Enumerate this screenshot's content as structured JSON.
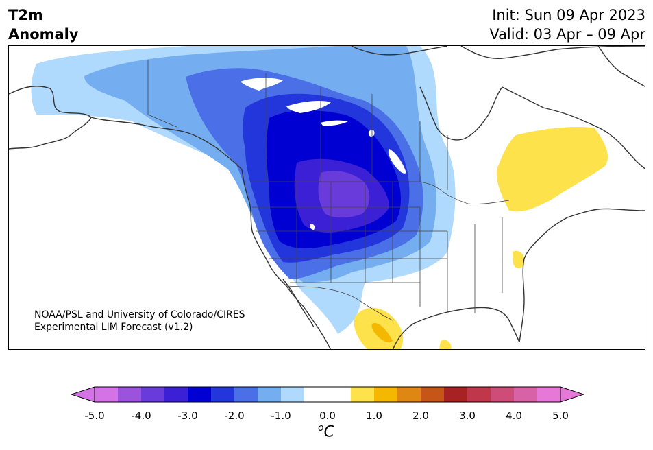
{
  "header": {
    "title_line1": "T2m",
    "title_line2": "Anomaly",
    "init": "Init: Sun 09 Apr 2023",
    "valid": "Valid: 03 Apr – 09 Apr"
  },
  "credit": {
    "line1": "NOAA/PSL and University of Colorado/CIRES",
    "line2": "Experimental LIM Forecast (v1.2)"
  },
  "colorbar": {
    "unit_symbol": "o",
    "unit_letter": "C",
    "ticks": [
      "-5.0",
      "-4.0",
      "-3.0",
      "-2.0",
      "-1.0",
      "0.0",
      "1.0",
      "2.0",
      "3.0",
      "4.0",
      "5.0"
    ],
    "colors": [
      "#d473e6",
      "#9b52dc",
      "#6a3bdb",
      "#3b20d6",
      "#0000d2",
      "#2236dc",
      "#4a6fe6",
      "#74aef0",
      "#afdafd",
      "#ffffff",
      "#ffffff",
      "#fde24b",
      "#f4b800",
      "#df8713",
      "#c65518",
      "#a92223",
      "#c0364a",
      "#cd4c78",
      "#d862a6",
      "#e678d8"
    ],
    "extend_low_color": "#d473e6",
    "extend_high_color": "#e678d8"
  },
  "map": {
    "land_color": "#ffffff",
    "coast_color": "#333333",
    "anomaly_regions": [
      {
        "level": "-1.0",
        "color": "#afdafd"
      },
      {
        "level": "-1.5",
        "color": "#74aef0"
      },
      {
        "level": "-2.0",
        "color": "#4a6fe6"
      },
      {
        "level": "-2.5",
        "color": "#2236dc"
      },
      {
        "level": "-3.0",
        "color": "#0000d2"
      },
      {
        "level": "-3.5",
        "color": "#3b20d6"
      },
      {
        "level": "-4.0",
        "color": "#6a3bdb"
      },
      {
        "level": "+0.5",
        "color": "#fde24b"
      },
      {
        "level": "+1.0",
        "color": "#f4b800"
      }
    ]
  }
}
